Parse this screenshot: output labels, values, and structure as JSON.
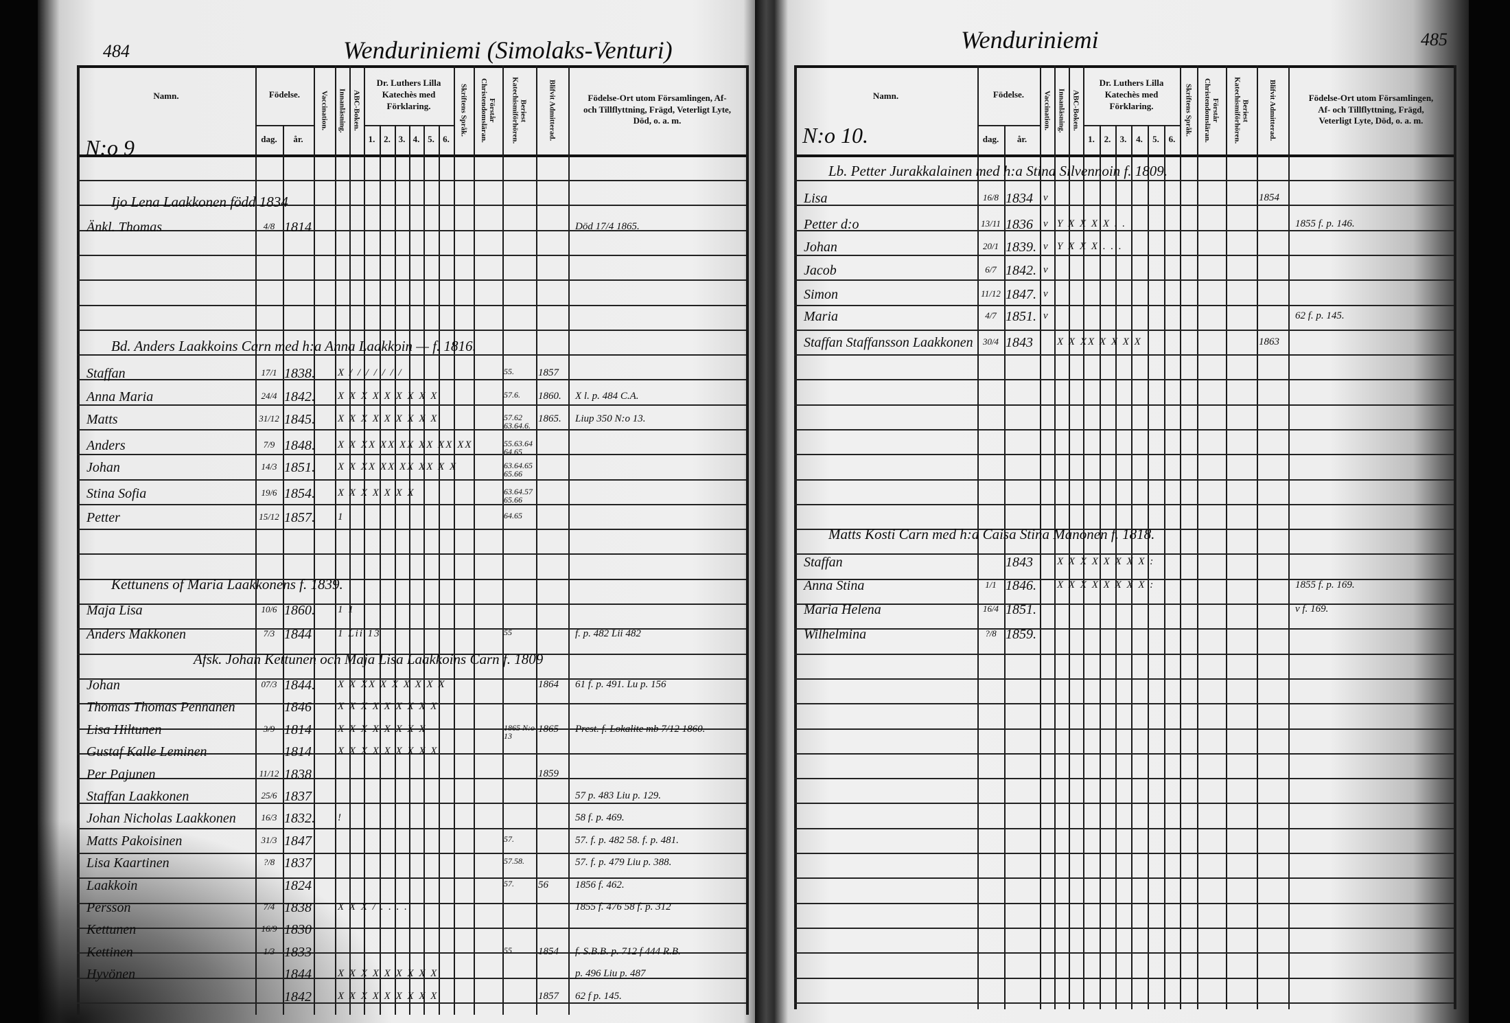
{
  "document": {
    "type": "Swedish/Finnish parish communion register (Husförhörslängd), two-page spread",
    "colors": {
      "ink": "#111111",
      "paper": "#ececec",
      "background": "#050505"
    }
  },
  "headers": {
    "namn": "Namn.",
    "fodelse": "Födelse.",
    "dag": "dag.",
    "ar": "år.",
    "vaccination": "Vaccination.",
    "innanlasning": "Innanläsning.",
    "abc": "ABC-Boken.",
    "luther": "Dr. Luthers Lilla Katechès med Förklaring.",
    "luther_cols": [
      "1.",
      "2.",
      "3.",
      "4.",
      "5.",
      "6."
    ],
    "skriftens": "Skriftens Språk.",
    "forstar": "Förstår Christendomsläran.",
    "beriest": "Beriest Katechismiförhören.",
    "blifvit": "Blifvit Admitterad.",
    "fodelseort": "Födelse-Ort utom Församlingen, Af- och Tillflyttning, Frägd, Veterligt Lyte, Död, o. a. m."
  },
  "pages": [
    {
      "page_number": "484",
      "title": "Wenduriniemi (Simolaks-Venturi)",
      "entries": [
        {
          "number": "N:o 9"
        },
        {
          "span": "Ijo Lena Laakkonen   född 1834"
        },
        {
          "name": "Änkl. Thomas",
          "dag": "4/8",
          "ar": "1814",
          "note": "Död 17/4 1865."
        },
        {
          "span": "Bd. Anders Laakkoins Carn med h:a Anna Laakkoin —   f. 1816."
        },
        {
          "name": "Staffan",
          "dag": "17/1",
          "ar": "1838.",
          "marks": "X / / / / / / /",
          "beriest": "55.",
          "blifvit": "1857"
        },
        {
          "name": "Anna Maria",
          "dag": "24/4",
          "ar": "1842.",
          "marks": "X X X X X X X X X",
          "beriest": "57.6.",
          "blifvit": "1860.",
          "note": "X l. p. 484 C.A."
        },
        {
          "name": "Matts",
          "dag": "31/12",
          "ar": "1845.",
          "marks": "X X X X X X X X X",
          "beriest": "57.62 63.64.6.",
          "blifvit": "1865.",
          "note": "Liup 350 N:o 13."
        },
        {
          "name": "Anders",
          "dag": "7/9",
          "ar": "1848.",
          "marks": "X X XX XX XX XX XX XX",
          "beriest": "55.63.64 64.65"
        },
        {
          "name": "Johan",
          "dag": "14/3",
          "ar": "1851.",
          "marks": "X X XX XX XX XX X X",
          "beriest": "63.64.65 65.66"
        },
        {
          "name": "Stina Sofia",
          "dag": "19/6",
          "ar": "1854.",
          "marks": "X X X X X X X",
          "beriest": "63.64.57 65.66"
        },
        {
          "name": "Petter",
          "dag": "15/12",
          "ar": "1857.",
          "marks": "1",
          "beriest": "64.65"
        },
        {
          "span": "Kettunens of Maria Laakkonens f. 1839."
        },
        {
          "name": "Maja Lisa",
          "dag": "10/6",
          "ar": "1860.",
          "marks": "1 1"
        },
        {
          "name": "Anders Makkonen",
          "dag": "7/3",
          "ar": "1844",
          "marks": "1 Lii 13",
          "beriest": "55",
          "note": "f. p. 482  Lii 482"
        },
        {
          "span": "Afsk. Johan Kettunen och Maja Lisa Laakkoins Carn f. 1809"
        },
        {
          "name": "Johan",
          "dag": "07/3",
          "ar": "1844.",
          "marks": "X X XX X X X X X X",
          "blifvit": "1864",
          "note": "61 f. p. 491.  Lu p. 156"
        },
        {
          "name": "Thomas Thomas Pennanen",
          "ar": "1846",
          "marks": "X X X X X X X X X"
        },
        {
          "name": "Lisa Hiltunen",
          "dag": "3/9",
          "ar": "1814",
          "marks": "X X X X X X X X",
          "beriest": "1865 N:o 13",
          "blifvit": "1865",
          "note": "Prest. f. Lokalite mb 7/12 1860."
        },
        {
          "name": "Gustaf Kalle Leminen",
          "ar": "1814",
          "marks": "X X X X X X X X X"
        },
        {
          "name": "Per Pajunen",
          "dag": "11/12",
          "ar": "1838",
          "blifvit": "1859"
        },
        {
          "name": "Staffan Laakkonen",
          "dag": "25/6",
          "ar": "1837",
          "note": "57 p. 483  Liu p. 129."
        },
        {
          "name": "Johan Nicholas Laakkonen",
          "dag": "16/3",
          "ar": "1832.",
          "marks": "!",
          "note": "58 f. p. 469."
        },
        {
          "name": "Matts Pakoisinen",
          "dag": "31/3",
          "ar": "1847",
          "beriest": "57.",
          "note": "57. f. p. 482  58. f. p. 481."
        },
        {
          "name": "Lisa Kaartinen",
          "dag": "?/8",
          "ar": "1837",
          "beriest": "57.58.",
          "note": "57. f. p. 479  Liu p. 388."
        },
        {
          "name": "Laakkoin",
          "ar": "1824",
          "beriest": "57.",
          "blifvit": "56",
          "note": "1856 f. 462."
        },
        {
          "name": "Persson",
          "dag": "7/4",
          "ar": "1838",
          "marks": "X X X / . . . .",
          "note": "1855 f. 476  58 f. p. 312"
        },
        {
          "name": "Kettunen",
          "dag": "16/9",
          "ar": "1830"
        },
        {
          "name": "Kettinen",
          "dag": "1/3",
          "ar": "1833",
          "beriest": "55",
          "blifvit": "1854",
          "note": "f. S.B.B. p. 712  f 444 R.B."
        },
        {
          "name": "Hyvönen",
          "ar": "1844",
          "marks": "X X X X X X X X X",
          "note": "p. 496  Liu p. 487"
        },
        {
          "name": "",
          "ar": "1842",
          "marks": "X X X X X X X X X",
          "blifvit": "1857",
          "note": "62 f p. 145."
        }
      ]
    },
    {
      "page_number": "485",
      "title": "Wenduriniemi",
      "entries": [
        {
          "number": "N:o 10."
        },
        {
          "span": "Lb. Petter Jurakkalainen med h:a Stina Silvennoin   f. 1809."
        },
        {
          "name": "Lisa",
          "dag": "16/8",
          "ar": "1834",
          "vacc": "v",
          "blifvit": "1854"
        },
        {
          "name": "Petter d:o",
          "dag": "13/11",
          "ar": "1836",
          "vacc": "v",
          "marks": "Y X X X X . .",
          "note": "1855 f. p. 146."
        },
        {
          "name": "Johan",
          "dag": "20/1",
          "ar": "1839.",
          "vacc": "v",
          "marks": "Y X X X . . ."
        },
        {
          "name": "Jacob",
          "dag": "6/7",
          "ar": "1842.",
          "vacc": "v"
        },
        {
          "name": "Simon",
          "dag": "11/12",
          "ar": "1847.",
          "vacc": "v"
        },
        {
          "name": "Maria",
          "dag": "4/7",
          "ar": "1851.",
          "vacc": "v",
          "note": "62 f. p. 145."
        },
        {
          "name": "Staffan Staffansson Laakkonen",
          "dag": "30/4",
          "ar": "1843",
          "marks": "X X XX X X X X",
          "blifvit": "1863"
        },
        {
          "span": "Matts Kosti Carn med h:a Caisa Stina Manonen   f. 1818."
        },
        {
          "name": "Staffan",
          "ar": "1843",
          "marks": "X X X X X X X X :"
        },
        {
          "name": "Anna Stina",
          "dag": "1/1",
          "ar": "1846.",
          "marks": "X X X X X X X X :",
          "note": "1855 f. p. 169."
        },
        {
          "name": "Maria Helena",
          "dag": "16/4",
          "ar": "1851.",
          "note": "v f. 169."
        },
        {
          "name": "Wilhelmina",
          "dag": "?/8",
          "ar": "1859."
        }
      ]
    }
  ]
}
